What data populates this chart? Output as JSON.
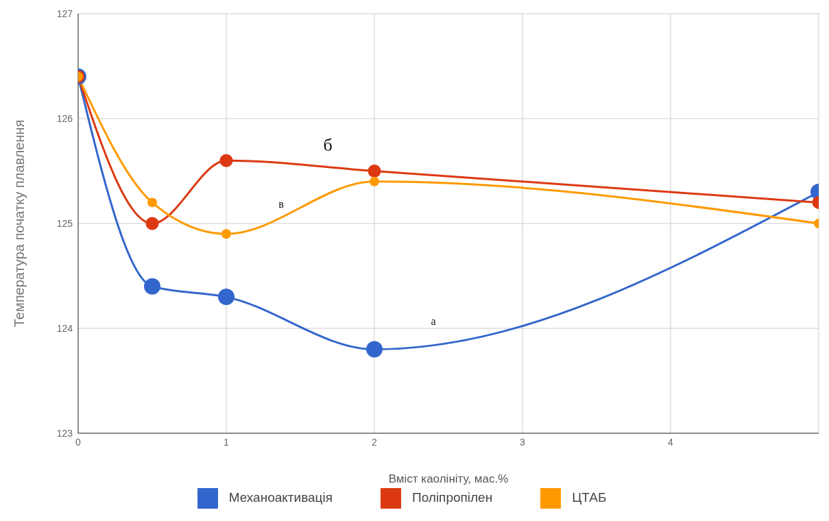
{
  "chart_data": {
    "type": "line",
    "xlabel": "Вміст каолініту, мас.%",
    "ylabel": "Температура початку плавлення",
    "x": [
      0,
      0.5,
      1,
      2,
      5
    ],
    "series": [
      {
        "name": "Механоактивація",
        "color": "#3366cc",
        "values": [
          126.4,
          124.4,
          124.3,
          123.8,
          125.3
        ]
      },
      {
        "name": "Поліпропілен",
        "color": "#dc3912",
        "values": [
          126.4,
          125.0,
          125.6,
          125.5,
          125.2
        ]
      },
      {
        "name": "ЦТАБ",
        "color": "#ff9900",
        "values": [
          126.4,
          125.2,
          124.9,
          125.4,
          125.0
        ]
      }
    ],
    "xlim": [
      0,
      5
    ],
    "xticks": [
      0,
      1,
      2,
      3,
      4
    ],
    "ylim": [
      123,
      127
    ],
    "yticks": [
      123,
      124,
      125,
      126,
      127
    ],
    "annotations": [
      "б",
      "в",
      "а"
    ],
    "grid": true,
    "legend": "bottom",
    "marker": "circle",
    "line_style": "solid"
  }
}
